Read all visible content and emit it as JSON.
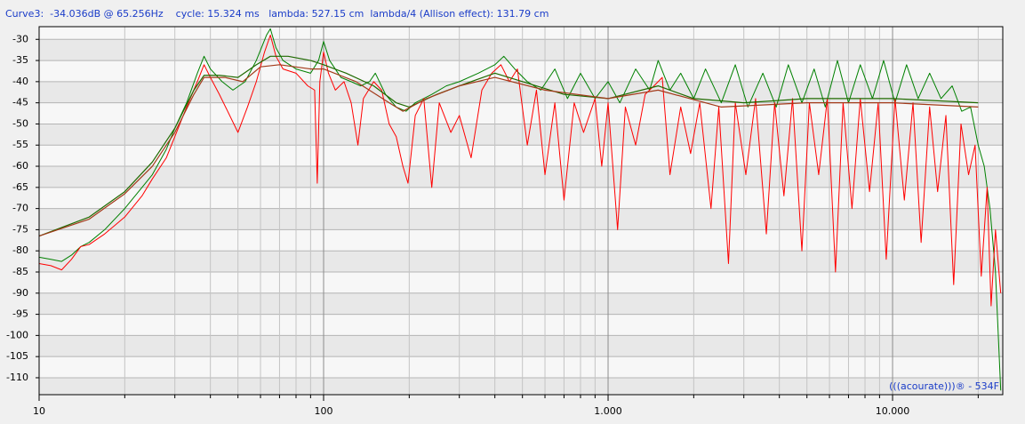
{
  "chart_data": {
    "type": "line",
    "title": "Curve3:  -34.036dB @ 65.256Hz    cycle: 15.324 ms   lambda: 527.15 cm  lambda/4 (Allison effect): 131.79 cm",
    "annotation": "(((acourate)))® - 534F",
    "xscale": "log",
    "xlim": [
      10,
      24400
    ],
    "xticks": [
      10,
      100,
      {
        "value": 1000,
        "label": "1.000"
      },
      {
        "value": 10000,
        "label": "10.000"
      }
    ],
    "xminorticks": [
      20,
      30,
      40,
      50,
      60,
      70,
      80,
      90,
      200,
      300,
      400,
      500,
      600,
      700,
      800,
      900,
      2000,
      3000,
      4000,
      5000,
      6000,
      7000,
      8000,
      9000,
      20000
    ],
    "ylim": [
      -114,
      -27
    ],
    "yticks": [
      -30,
      -35,
      -40,
      -45,
      -50,
      -55,
      -60,
      -65,
      -70,
      -75,
      -80,
      -85,
      -90,
      -95,
      -100,
      -105,
      -110
    ],
    "grid": true,
    "series": [
      {
        "color": "#008000",
        "x": [
          10,
          11,
          12,
          13,
          14,
          15,
          17,
          20,
          23,
          25,
          28,
          30,
          33,
          36,
          38,
          40,
          44,
          48,
          53,
          58,
          63,
          65,
          68,
          72,
          80,
          90,
          96,
          100,
          105,
          115,
          125,
          135,
          145,
          152,
          165,
          180,
          195,
          210,
          240,
          270,
          300,
          350,
          400,
          430,
          470,
          520,
          580,
          650,
          720,
          800,
          900,
          1000,
          1100,
          1250,
          1400,
          1500,
          1650,
          1800,
          2000,
          2200,
          2500,
          2800,
          3100,
          3500,
          3900,
          4300,
          4800,
          5300,
          5800,
          6400,
          7000,
          7700,
          8500,
          9300,
          10200,
          11200,
          12300,
          13500,
          14800,
          16200,
          17500,
          18800,
          20000,
          21000,
          22000,
          23000,
          24000
        ],
        "values": [
          -81.5,
          -82,
          -82.5,
          -81,
          -79,
          -78,
          -75,
          -70,
          -65,
          -62,
          -56,
          -51,
          -45,
          -38,
          -34,
          -37,
          -40,
          -42,
          -40,
          -35,
          -29,
          -27.5,
          -32,
          -35,
          -37,
          -38,
          -35,
          -30.5,
          -35,
          -39,
          -40,
          -41,
          -40,
          -38,
          -43,
          -46,
          -47,
          -45,
          -43,
          -41,
          -40,
          -38,
          -36,
          -34,
          -37,
          -40,
          -42,
          -37,
          -44,
          -38,
          -44,
          -40,
          -45,
          -37,
          -42,
          -35,
          -42,
          -38,
          -44,
          -37,
          -45,
          -36,
          -46,
          -38,
          -46,
          -36,
          -45,
          -37,
          -46,
          -35,
          -45,
          -36,
          -44,
          -35,
          -45,
          -36,
          -44,
          -38,
          -44,
          -41,
          -47,
          -46,
          -55,
          -60,
          -70,
          -85,
          -113
        ]
      },
      {
        "color": "#ff0000",
        "x": [
          10,
          11,
          12,
          13,
          14,
          15,
          17,
          20,
          23,
          25,
          28,
          30,
          33,
          36,
          38,
          40,
          43,
          46,
          50,
          54,
          58,
          62,
          65,
          68,
          72,
          80,
          88,
          93,
          95,
          97,
          100,
          104,
          110,
          118,
          125,
          132,
          138,
          150,
          160,
          170,
          180,
          190,
          198,
          210,
          225,
          240,
          255,
          280,
          300,
          330,
          360,
          390,
          420,
          450,
          480,
          520,
          560,
          600,
          650,
          700,
          760,
          820,
          900,
          950,
          1000,
          1080,
          1150,
          1250,
          1350,
          1450,
          1550,
          1650,
          1800,
          1950,
          2100,
          2300,
          2450,
          2650,
          2800,
          3050,
          3300,
          3600,
          3850,
          4150,
          4450,
          4800,
          5100,
          5500,
          5900,
          6300,
          6700,
          7200,
          7700,
          8300,
          8900,
          9500,
          10200,
          11000,
          11800,
          12600,
          13500,
          14400,
          15400,
          16400,
          17400,
          18500,
          19500,
          20500,
          21500,
          22200,
          23000,
          24000
        ],
        "values": [
          -83,
          -83.5,
          -84.5,
          -82,
          -79,
          -78.5,
          -76,
          -72,
          -67,
          -63,
          -58,
          -53,
          -46,
          -40,
          -36,
          -39,
          -43,
          -47,
          -52,
          -46,
          -40,
          -33,
          -29,
          -34,
          -37,
          -38,
          -41,
          -42,
          -64,
          -40,
          -33,
          -38,
          -42,
          -40,
          -45,
          -55,
          -44,
          -40,
          -42,
          -50,
          -53,
          -60,
          -64,
          -48,
          -44,
          -65,
          -45,
          -52,
          -48,
          -58,
          -42,
          -38,
          -36,
          -40,
          -37,
          -55,
          -42,
          -62,
          -45,
          -68,
          -45,
          -52,
          -44,
          -60,
          -45,
          -75,
          -46,
          -55,
          -43,
          -41,
          -39,
          -62,
          -46,
          -57,
          -45,
          -70,
          -46,
          -83,
          -45,
          -62,
          -44,
          -76,
          -45,
          -67,
          -44,
          -80,
          -45,
          -62,
          -44,
          -85,
          -45,
          -70,
          -44,
          -66,
          -45,
          -82,
          -44,
          -68,
          -45,
          -78,
          -46,
          -66,
          -48,
          -88,
          -50,
          -62,
          -55,
          -86,
          -65,
          -93,
          -75,
          -90
        ]
      },
      {
        "color": "#1f6a00",
        "x": [
          10,
          15,
          20,
          25,
          30,
          35,
          38,
          43,
          50,
          58,
          65,
          75,
          90,
          100,
          120,
          150,
          180,
          200,
          250,
          300,
          400,
          500,
          700,
          1000,
          1500,
          2000,
          3000,
          5000,
          10000,
          20000
        ],
        "values": [
          -76.5,
          -72,
          -66,
          -59,
          -51,
          -42,
          -38.5,
          -38.5,
          -39,
          -36,
          -34,
          -34,
          -35,
          -36,
          -38,
          -41,
          -45,
          -46,
          -43,
          -41,
          -38,
          -40,
          -43,
          -44,
          -41,
          -44,
          -45,
          -44,
          -44,
          -45
        ]
      },
      {
        "color": "#a33a1a",
        "x": [
          10,
          15,
          20,
          25,
          30,
          35,
          38,
          45,
          52,
          60,
          70,
          90,
          100,
          130,
          170,
          190,
          230,
          300,
          400,
          600,
          1000,
          1500,
          2500,
          5000,
          10000,
          20000
        ],
        "values": [
          -76.5,
          -72.5,
          -66.5,
          -60,
          -52,
          -43,
          -39,
          -39,
          -40,
          -36.5,
          -36,
          -37,
          -37,
          -40,
          -45,
          -47,
          -44,
          -41,
          -39,
          -42,
          -44,
          -42,
          -46,
          -45,
          -45,
          -46
        ]
      }
    ]
  }
}
